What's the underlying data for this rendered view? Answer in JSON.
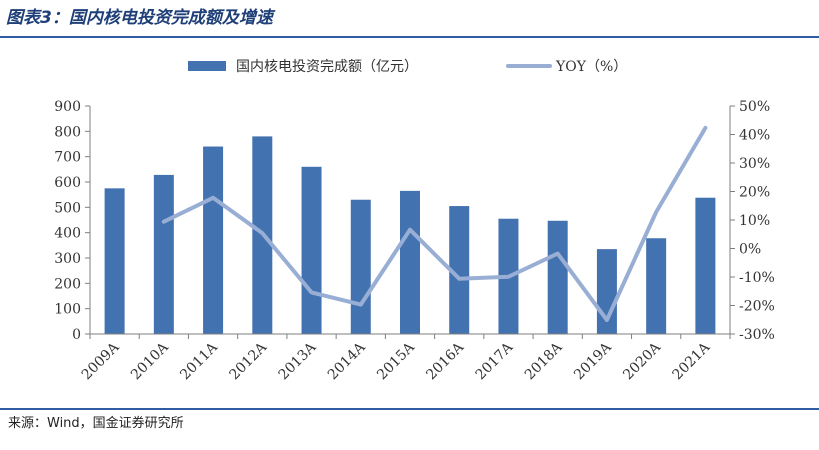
{
  "figure_title": "图表3：国内核电投资完成额及增速",
  "source": "来源：Wind，国金证券研究所",
  "colors": {
    "bar": "#4372b0",
    "line": "#99aed4",
    "rule": "#2e5da3",
    "title": "#1f3f78"
  },
  "chart_data": {
    "type": "bar",
    "categories": [
      "2009A",
      "2010A",
      "2011A",
      "2012A",
      "2013A",
      "2014A",
      "2015A",
      "2016A",
      "2017A",
      "2018A",
      "2019A",
      "2020A",
      "2021A"
    ],
    "series": [
      {
        "name": "国内核电投资完成额（亿元）",
        "type": "bar",
        "axis": "left",
        "values": [
          575,
          628,
          740,
          780,
          660,
          530,
          565,
          505,
          455,
          447,
          335,
          378,
          538
        ]
      },
      {
        "name": "YOY（%）",
        "type": "line",
        "axis": "right",
        "values": [
          null,
          9.4,
          17.8,
          5.4,
          -15.4,
          -19.7,
          6.6,
          -10.6,
          -9.9,
          -1.8,
          -25.1,
          12.8,
          42.3
        ]
      }
    ],
    "ylim_left": [
      0,
      900
    ],
    "yticks_left": [
      "0",
      "100",
      "200",
      "300",
      "400",
      "500",
      "600",
      "700",
      "800",
      "900"
    ],
    "ylim_right": [
      -30,
      50
    ],
    "yticks_right": [
      "-30%",
      "-20%",
      "-10%",
      "0%",
      "10%",
      "20%",
      "30%",
      "40%",
      "50%"
    ],
    "legend_position": "top",
    "grid": false
  }
}
